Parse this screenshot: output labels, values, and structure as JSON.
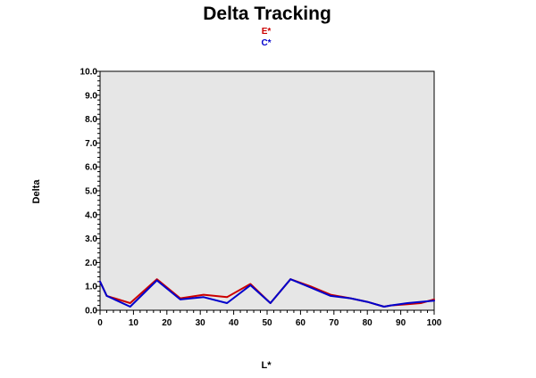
{
  "chart_data": {
    "type": "line",
    "title": "Delta Tracking",
    "xlabel": "L*",
    "ylabel": "Delta",
    "xlim": [
      0,
      100
    ],
    "ylim": [
      0,
      10
    ],
    "xticks": [
      0,
      10,
      20,
      30,
      40,
      50,
      60,
      70,
      80,
      90,
      100
    ],
    "yticks": [
      0,
      1,
      2,
      3,
      4,
      5,
      6,
      7,
      8,
      9,
      10
    ],
    "xtick_labels": [
      "0",
      "10",
      "20",
      "30",
      "40",
      "50",
      "60",
      "70",
      "80",
      "90",
      "100"
    ],
    "ytick_labels": [
      "0.0",
      "1.0",
      "2.0",
      "3.0",
      "4.0",
      "5.0",
      "6.0",
      "7.0",
      "8.0",
      "9.0",
      "10.0"
    ],
    "grid": false,
    "legend_position": "top-center",
    "plot_background": "#e6e6e6",
    "series": [
      {
        "name": "E*",
        "color": "#cc0000",
        "x": [
          0,
          2,
          9,
          17,
          24,
          31,
          38,
          45,
          51,
          57,
          63,
          69,
          75,
          80,
          85,
          87,
          92,
          96,
          100
        ],
        "y": [
          1.2,
          0.6,
          0.3,
          1.3,
          0.5,
          0.65,
          0.55,
          1.1,
          0.3,
          1.3,
          1.0,
          0.65,
          0.5,
          0.35,
          0.15,
          0.2,
          0.25,
          0.3,
          0.45
        ]
      },
      {
        "name": "C*",
        "color": "#0000cc",
        "x": [
          0,
          2,
          9,
          17,
          24,
          31,
          38,
          45,
          51,
          57,
          63,
          69,
          75,
          80,
          85,
          87,
          92,
          96,
          100
        ],
        "y": [
          1.2,
          0.6,
          0.15,
          1.25,
          0.45,
          0.55,
          0.3,
          1.05,
          0.3,
          1.3,
          0.95,
          0.6,
          0.5,
          0.35,
          0.15,
          0.2,
          0.3,
          0.35,
          0.4
        ]
      }
    ]
  }
}
